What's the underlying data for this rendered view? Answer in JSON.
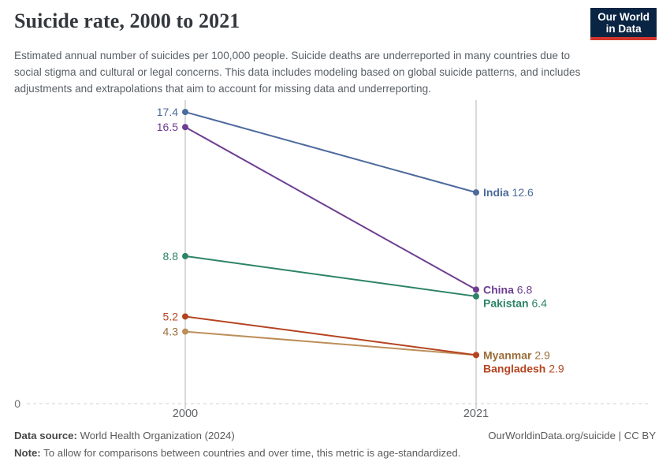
{
  "header": {
    "title": "Suicide rate, 2000 to 2021",
    "subtitle": "Estimated annual number of suicides per 100,000 people. Suicide deaths are underreported in many countries due to social stigma and cultural or legal concerns. This data includes modeling based on global suicide patterns, and includes adjustments and extrapolations that aim to account for missing data and underreporting.",
    "logo": {
      "line1": "Our World",
      "line2": "in Data",
      "bg": "#0a2443",
      "accent": "#d2352c"
    }
  },
  "chart_data": {
    "type": "line",
    "variant": "slope",
    "title": "Suicide rate, 2000 to 2021",
    "unit": "suicides per 100,000 people",
    "x_categories": [
      "2000",
      "2021"
    ],
    "ylim": [
      0,
      18.5
    ],
    "y_zero_label": "0",
    "grid": "vertical-lines-at-years, dashed-zero-baseline",
    "legend_position": "end-of-line-labels",
    "series": [
      {
        "name": "India",
        "values": [
          17.4,
          12.6
        ],
        "color": "#4C6A9C",
        "label_color": "#4C6A9C"
      },
      {
        "name": "China",
        "values": [
          16.5,
          6.8
        ],
        "color": "#6D3E91",
        "label_color": "#6D3E91"
      },
      {
        "name": "Pakistan",
        "values": [
          8.8,
          6.4
        ],
        "color": "#2C8465",
        "label_color": "#2C8465"
      },
      {
        "name": "Myanmar",
        "values": [
          4.3,
          2.9
        ],
        "color": "#BC8E5A",
        "label_color": "#996D39"
      },
      {
        "name": "Bangladesh",
        "values": [
          5.2,
          2.9
        ],
        "color": "#B54421",
        "label_color": "#B54421"
      }
    ],
    "axis_colors": {
      "gridline": "#b6b6b6",
      "zero_line": "#e0e0e0",
      "tick_text": "#5f6368",
      "zero_text": "#6e7073"
    }
  },
  "footer": {
    "source_label": "Data source:",
    "source_value": "World Health Organization (2024)",
    "credit": "OurWorldinData.org/suicide | CC BY",
    "note_label": "Note:",
    "note_value": "To allow for comparisons between countries and over time, this metric is age-standardized."
  }
}
